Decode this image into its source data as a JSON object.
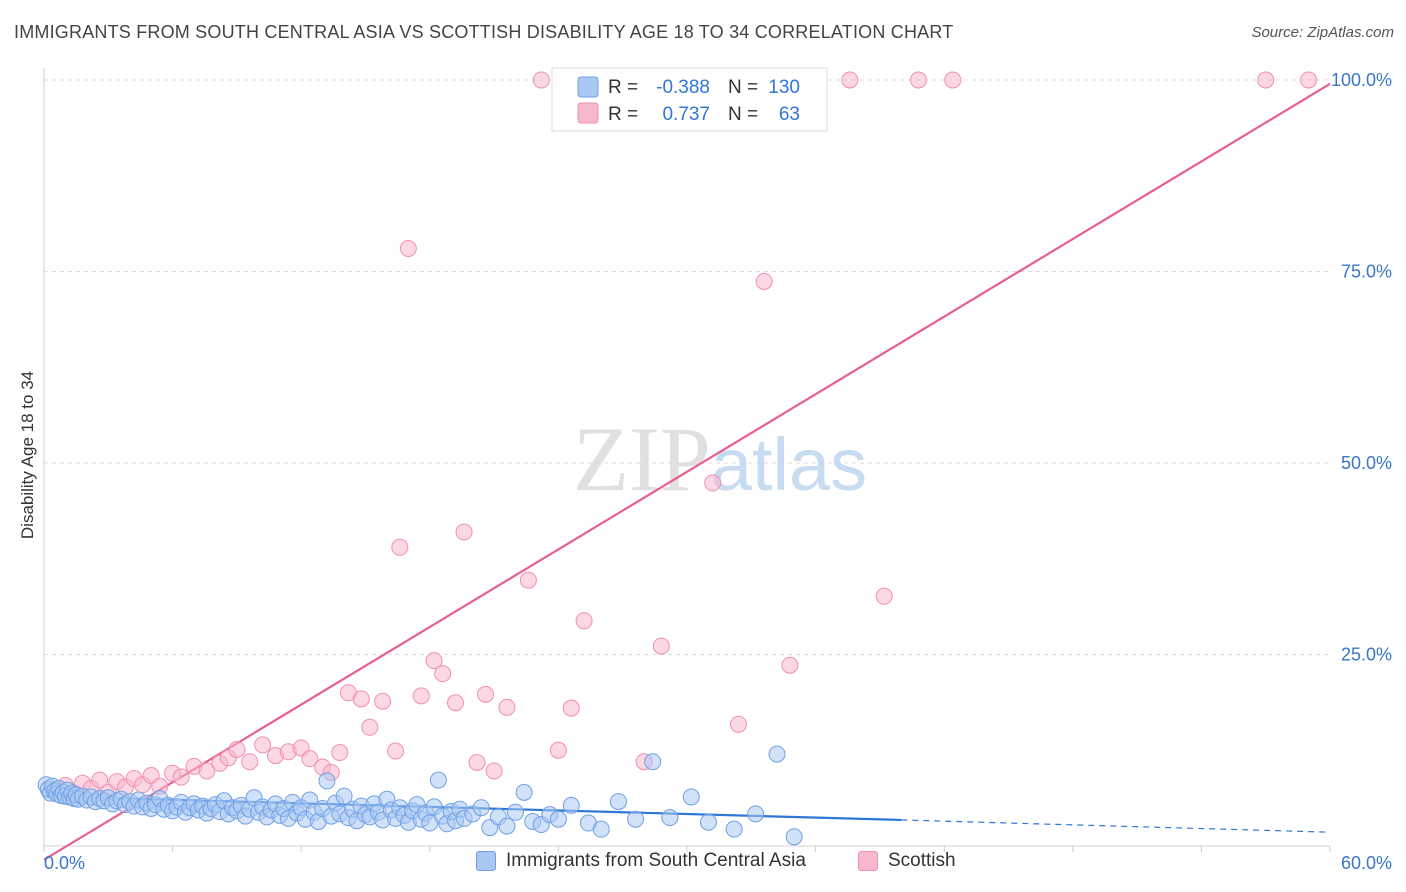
{
  "chart_data": {
    "type": "scatter",
    "title": "IMMIGRANTS FROM SOUTH CENTRAL ASIA VS SCOTTISH DISABILITY AGE 18 TO 34 CORRELATION CHART",
    "source": "Source: ZipAtlas.com",
    "watermark": "ZIPatlas",
    "ylabel": "Disability Age 18 to 34",
    "xlim": [
      0,
      60
    ],
    "ylim": [
      0,
      100
    ],
    "x_tick_labels": [
      "0.0%",
      "60.0%"
    ],
    "y_ticks": [
      25,
      50,
      75,
      100
    ],
    "y_tick_labels": [
      "25.0%",
      "50.0%",
      "75.0%",
      "100.0%"
    ],
    "grid": true,
    "legend_placement": "top-center",
    "legend": [
      {
        "r_label": "R =",
        "r_value": "-0.388",
        "n_label": "N =",
        "n_value": "130"
      },
      {
        "r_label": "R =",
        "r_value": "0.737",
        "n_label": "N =",
        "n_value": "63"
      }
    ],
    "series": [
      {
        "name": "Immigrants from South Central Asia",
        "color": "#6fa0e6",
        "fill": "#aac8f2",
        "line_color": "#2f76d6",
        "r": -0.388,
        "n": 130,
        "trend": {
          "x0": 0.0,
          "y0": 6.5,
          "x1": 40.0,
          "y1": 3.4,
          "dashed_to_x": 60.0,
          "dashed_to_y": 1.8
        },
        "points": [
          [
            0.1,
            8.0
          ],
          [
            0.2,
            7.4
          ],
          [
            0.3,
            6.9
          ],
          [
            0.4,
            7.8
          ],
          [
            0.5,
            7.2
          ],
          [
            0.6,
            6.8
          ],
          [
            0.7,
            7.5
          ],
          [
            0.8,
            6.6
          ],
          [
            0.9,
            7.0
          ],
          [
            1.0,
            6.5
          ],
          [
            1.1,
            7.3
          ],
          [
            1.2,
            6.4
          ],
          [
            1.3,
            6.9
          ],
          [
            1.4,
            6.2
          ],
          [
            1.5,
            6.7
          ],
          [
            1.6,
            6.1
          ],
          [
            1.8,
            6.5
          ],
          [
            2.0,
            6.0
          ],
          [
            2.2,
            6.4
          ],
          [
            2.4,
            5.8
          ],
          [
            2.6,
            6.2
          ],
          [
            2.8,
            5.9
          ],
          [
            3.0,
            6.3
          ],
          [
            3.2,
            5.5
          ],
          [
            3.4,
            5.9
          ],
          [
            3.6,
            6.1
          ],
          [
            3.8,
            5.4
          ],
          [
            4.0,
            5.8
          ],
          [
            4.2,
            5.2
          ],
          [
            4.4,
            6.0
          ],
          [
            4.6,
            5.1
          ],
          [
            4.8,
            5.6
          ],
          [
            5.0,
            4.9
          ],
          [
            5.2,
            5.4
          ],
          [
            5.4,
            6.2
          ],
          [
            5.6,
            4.8
          ],
          [
            5.8,
            5.3
          ],
          [
            6.0,
            4.6
          ],
          [
            6.2,
            5.1
          ],
          [
            6.4,
            5.7
          ],
          [
            6.6,
            4.4
          ],
          [
            6.8,
            5.0
          ],
          [
            7.0,
            5.5
          ],
          [
            7.2,
            4.7
          ],
          [
            7.4,
            5.2
          ],
          [
            7.6,
            4.3
          ],
          [
            7.8,
            4.9
          ],
          [
            8.0,
            5.4
          ],
          [
            8.2,
            4.5
          ],
          [
            8.4,
            5.9
          ],
          [
            8.6,
            4.2
          ],
          [
            8.8,
            5.0
          ],
          [
            9.0,
            4.6
          ],
          [
            9.2,
            5.3
          ],
          [
            9.4,
            3.9
          ],
          [
            9.6,
            4.8
          ],
          [
            9.8,
            6.3
          ],
          [
            10.0,
            4.4
          ],
          [
            10.2,
            5.1
          ],
          [
            10.4,
            3.8
          ],
          [
            10.6,
            4.7
          ],
          [
            10.8,
            5.5
          ],
          [
            11.0,
            4.0
          ],
          [
            11.2,
            4.9
          ],
          [
            11.4,
            3.6
          ],
          [
            11.6,
            5.7
          ],
          [
            11.8,
            4.3
          ],
          [
            12.0,
            5.0
          ],
          [
            12.2,
            3.5
          ],
          [
            12.4,
            6.0
          ],
          [
            12.6,
            4.4
          ],
          [
            12.8,
            3.2
          ],
          [
            13.0,
            4.9
          ],
          [
            13.2,
            8.5
          ],
          [
            13.4,
            3.9
          ],
          [
            13.6,
            5.6
          ],
          [
            13.8,
            4.2
          ],
          [
            14.0,
            6.5
          ],
          [
            14.2,
            3.7
          ],
          [
            14.4,
            4.8
          ],
          [
            14.6,
            3.3
          ],
          [
            14.8,
            5.2
          ],
          [
            15.0,
            4.1
          ],
          [
            15.2,
            3.8
          ],
          [
            15.4,
            5.5
          ],
          [
            15.6,
            4.4
          ],
          [
            15.8,
            3.4
          ],
          [
            16.0,
            6.1
          ],
          [
            16.2,
            4.7
          ],
          [
            16.4,
            3.6
          ],
          [
            16.6,
            5.0
          ],
          [
            16.8,
            4.0
          ],
          [
            17.0,
            3.1
          ],
          [
            17.2,
            4.6
          ],
          [
            17.4,
            5.4
          ],
          [
            17.6,
            3.5
          ],
          [
            17.8,
            4.3
          ],
          [
            18.0,
            3.0
          ],
          [
            18.2,
            5.1
          ],
          [
            18.4,
            8.6
          ],
          [
            18.6,
            3.9
          ],
          [
            18.8,
            2.9
          ],
          [
            19.0,
            4.5
          ],
          [
            19.2,
            3.3
          ],
          [
            19.4,
            4.8
          ],
          [
            19.6,
            3.6
          ],
          [
            20.0,
            4.2
          ],
          [
            20.4,
            5.0
          ],
          [
            20.8,
            2.4
          ],
          [
            21.2,
            3.8
          ],
          [
            21.6,
            2.6
          ],
          [
            22.0,
            4.4
          ],
          [
            22.4,
            7.0
          ],
          [
            22.8,
            3.2
          ],
          [
            23.2,
            2.8
          ],
          [
            23.6,
            4.1
          ],
          [
            24.0,
            3.5
          ],
          [
            24.6,
            5.3
          ],
          [
            25.4,
            3.0
          ],
          [
            26.0,
            2.2
          ],
          [
            26.8,
            5.8
          ],
          [
            27.6,
            3.5
          ],
          [
            28.4,
            11.0
          ],
          [
            29.2,
            3.7
          ],
          [
            30.2,
            6.4
          ],
          [
            31.0,
            3.1
          ],
          [
            32.2,
            2.2
          ],
          [
            33.2,
            4.2
          ],
          [
            34.2,
            12.0
          ],
          [
            35.0,
            1.2
          ]
        ]
      },
      {
        "name": "Scottish",
        "color": "#f08fb0",
        "fill": "#f7b8cd",
        "line_color": "#e8608f",
        "r": 0.737,
        "n": 63,
        "trend": {
          "x0": 0.0,
          "y0": -1.8,
          "x1": 60.0,
          "y1": 99.5
        },
        "points": [
          [
            0.6,
            7.3
          ],
          [
            1.0,
            7.9
          ],
          [
            1.4,
            6.9
          ],
          [
            1.8,
            8.2
          ],
          [
            2.2,
            7.5
          ],
          [
            2.6,
            8.6
          ],
          [
            3.0,
            7.0
          ],
          [
            3.4,
            8.4
          ],
          [
            3.8,
            7.7
          ],
          [
            4.2,
            8.8
          ],
          [
            4.6,
            8.0
          ],
          [
            5.0,
            9.2
          ],
          [
            5.4,
            7.8
          ],
          [
            6.0,
            9.5
          ],
          [
            6.4,
            9.0
          ],
          [
            7.0,
            10.4
          ],
          [
            7.6,
            9.8
          ],
          [
            8.2,
            10.8
          ],
          [
            8.6,
            11.5
          ],
          [
            9.0,
            12.6
          ],
          [
            9.6,
            11.0
          ],
          [
            10.2,
            13.2
          ],
          [
            10.8,
            11.8
          ],
          [
            11.4,
            12.3
          ],
          [
            12.0,
            12.8
          ],
          [
            12.4,
            11.4
          ],
          [
            13.0,
            10.3
          ],
          [
            13.4,
            9.6
          ],
          [
            13.8,
            12.2
          ],
          [
            14.2,
            20.0
          ],
          [
            14.8,
            19.2
          ],
          [
            15.2,
            15.5
          ],
          [
            15.8,
            18.9
          ],
          [
            16.4,
            12.4
          ],
          [
            16.6,
            39.0
          ],
          [
            17.0,
            78.0
          ],
          [
            17.6,
            19.6
          ],
          [
            18.2,
            24.2
          ],
          [
            18.6,
            22.5
          ],
          [
            19.2,
            18.7
          ],
          [
            19.6,
            41.0
          ],
          [
            20.2,
            10.9
          ],
          [
            20.6,
            19.8
          ],
          [
            21.0,
            9.8
          ],
          [
            21.6,
            18.1
          ],
          [
            22.6,
            34.7
          ],
          [
            23.2,
            100.0
          ],
          [
            24.0,
            12.5
          ],
          [
            24.6,
            18.0
          ],
          [
            25.2,
            29.4
          ],
          [
            27.2,
            100.0
          ],
          [
            28.0,
            11.0
          ],
          [
            28.8,
            26.1
          ],
          [
            31.2,
            47.4
          ],
          [
            32.4,
            15.9
          ],
          [
            33.6,
            73.7
          ],
          [
            34.8,
            23.6
          ],
          [
            37.6,
            100.0
          ],
          [
            39.2,
            32.6
          ],
          [
            40.8,
            100.0
          ],
          [
            42.4,
            100.0
          ],
          [
            57.0,
            100.0
          ],
          [
            59.0,
            100.0
          ]
        ]
      }
    ]
  }
}
